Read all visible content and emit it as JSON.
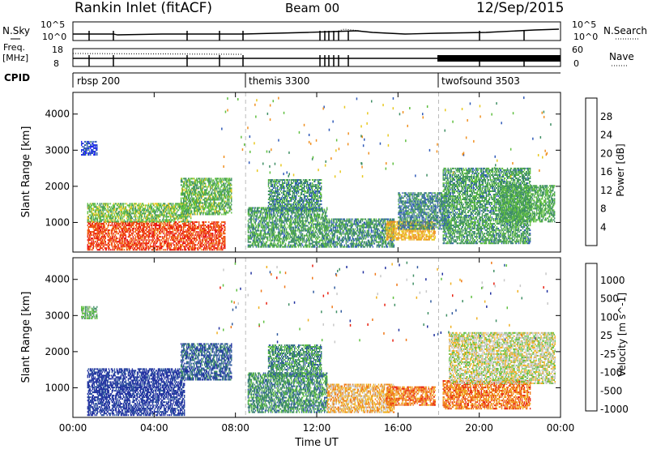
{
  "header": {
    "station": "Rankin Inlet (fitACF)",
    "beam": "Beam 00",
    "date": "12/Sep/2015"
  },
  "top_panels": {
    "nsky_label": "N.Sky",
    "nsky_ticks": [
      "10^5",
      "10^0"
    ],
    "nsearch_label": "N.Search",
    "nsearch_ticks": [
      "10^5",
      "10^0"
    ],
    "freq_label_1": "Freq.",
    "freq_label_2": "[MHz]",
    "freq_ticks": [
      "18",
      "8"
    ],
    "nave_label": "Nave",
    "nave_ticks": [
      "60",
      "0"
    ],
    "cpid_label": "CPID",
    "cpid_segments": [
      {
        "name": "rbsp 200",
        "start_hour": 0
      },
      {
        "name": "themis 3300",
        "start_hour": 8.5
      },
      {
        "name": "twofsound 3503",
        "start_hour": 18
      }
    ]
  },
  "chart_data": [
    {
      "type": "heatmap",
      "title": "Power [dB]",
      "ylabel": "Slant Range [km]",
      "ylim": [
        180,
        4600
      ],
      "xlim": [
        0,
        24
      ],
      "yticks": [
        "1000",
        "2000",
        "3000",
        "4000"
      ],
      "colorbar_ticks": [
        "4",
        "8",
        "12",
        "16",
        "20",
        "24",
        "28"
      ],
      "colorbar_colors": [
        "#2020ff",
        "#2f5ab8",
        "#3f8f64",
        "#5fbf3f",
        "#e8c81e",
        "#f09020",
        "#f05010",
        "#e81010"
      ],
      "vmin": 0,
      "vmax": 32,
      "regions": [
        {
          "t0": 0.7,
          "t1": 7.5,
          "r0": 220,
          "r1": 1000,
          "val": 27
        },
        {
          "t0": 0.7,
          "t1": 5.8,
          "r0": 1000,
          "r1": 1500,
          "val": 14
        },
        {
          "t0": 5.3,
          "t1": 7.8,
          "r0": 1200,
          "r1": 2200,
          "val": 13
        },
        {
          "t0": 0.4,
          "t1": 1.2,
          "r0": 2850,
          "r1": 3250,
          "val": 5
        },
        {
          "t0": 8.6,
          "t1": 12.5,
          "r0": 300,
          "r1": 1400,
          "val": 11
        },
        {
          "t0": 9.6,
          "t1": 12.2,
          "r0": 1300,
          "r1": 2200,
          "val": 10
        },
        {
          "t0": 12.5,
          "t1": 15.8,
          "r0": 300,
          "r1": 1100,
          "val": 10
        },
        {
          "t0": 15.4,
          "t1": 17.8,
          "r0": 500,
          "r1": 1000,
          "val": 20
        },
        {
          "t0": 16.0,
          "t1": 18.5,
          "r0": 800,
          "r1": 1800,
          "val": 9
        },
        {
          "t0": 18.2,
          "t1": 22.5,
          "r0": 400,
          "r1": 2500,
          "val": 11
        },
        {
          "t0": 21.0,
          "t1": 23.7,
          "r0": 1000,
          "r1": 2000,
          "val": 12
        }
      ]
    },
    {
      "type": "heatmap",
      "title": "Velocity [m s^-1]",
      "ylabel": "Slant Range [km]",
      "xlabel": "Time UT",
      "ylim": [
        180,
        4600
      ],
      "xlim": [
        0,
        24
      ],
      "yticks": [
        "1000",
        "2000",
        "3000",
        "4000"
      ],
      "xticks": [
        "00:00",
        "04:00",
        "08:00",
        "12:00",
        "16:00",
        "20:00",
        "00:00"
      ],
      "colorbar_ticks": [
        "1000",
        "500",
        "100",
        "25",
        "-25",
        "-100",
        "-500",
        "-1000"
      ],
      "colorbar_colors": [
        "#2030a0",
        "#2f5a9e",
        "#3f8f64",
        "#5fc040",
        "#c8c8c8",
        "#f0b020",
        "#f07818",
        "#e82010"
      ],
      "regions": [
        {
          "t0": 0.7,
          "t1": 5.5,
          "r0": 220,
          "r1": 1000,
          "val": 0
        },
        {
          "t0": 0.7,
          "t1": 5.5,
          "r0": 1000,
          "r1": 1500,
          "val": 0
        },
        {
          "t0": 5.3,
          "t1": 7.8,
          "r0": 1200,
          "r1": 2200,
          "val": 1
        },
        {
          "t0": 0.4,
          "t1": 1.2,
          "r0": 2900,
          "r1": 3250,
          "val": 3
        },
        {
          "t0": 8.6,
          "t1": 12.5,
          "r0": 300,
          "r1": 1400,
          "val": 2
        },
        {
          "t0": 9.6,
          "t1": 12.2,
          "r0": 1300,
          "r1": 2200,
          "val": 2
        },
        {
          "t0": 12.5,
          "t1": 15.8,
          "r0": 300,
          "r1": 1100,
          "val": 5
        },
        {
          "t0": 15.4,
          "t1": 17.8,
          "r0": 500,
          "r1": 1000,
          "val": 6
        },
        {
          "t0": 18.2,
          "t1": 22.5,
          "r0": 400,
          "r1": 1200,
          "val": 6
        },
        {
          "t0": 18.5,
          "t1": 23.7,
          "r0": 1100,
          "r1": 2500,
          "val": 4
        }
      ]
    }
  ]
}
